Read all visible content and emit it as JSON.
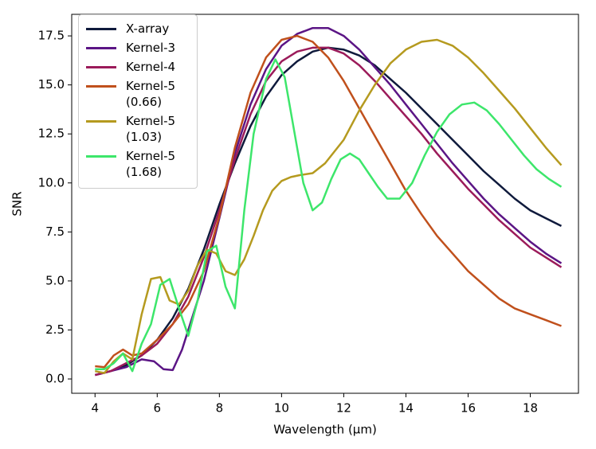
{
  "chart_data": {
    "type": "line",
    "xlabel": "Wavelength (μm)",
    "ylabel": "SNR",
    "xlim": [
      3.25,
      19.55
    ],
    "ylim": [
      -0.73,
      18.6
    ],
    "xticks": [
      4,
      6,
      8,
      10,
      12,
      14,
      16,
      18
    ],
    "yticks": [
      {
        "value": 0,
        "label": "0.0"
      },
      2.5,
      {
        "value": 5,
        "label": "5.0"
      },
      7.5,
      {
        "value": 10,
        "label": "10.0"
      },
      12.5,
      {
        "value": 15,
        "label": "15.0"
      },
      17.5
    ],
    "legend": "upper left",
    "series": [
      {
        "name": "X-array",
        "color": "#0f1a3c",
        "x": [
          4,
          4.5,
          5,
          5.5,
          6,
          6.5,
          7,
          7.5,
          8,
          8.5,
          9,
          9.5,
          10,
          10.5,
          11,
          11.5,
          12,
          12.5,
          13,
          13.5,
          14,
          14.5,
          15,
          15.5,
          16,
          16.5,
          17,
          17.5,
          18,
          18.5,
          19
        ],
        "values": [
          0.2,
          0.4,
          0.7,
          1.2,
          2.0,
          3.1,
          4.6,
          6.6,
          8.9,
          11.0,
          12.9,
          14.4,
          15.5,
          16.2,
          16.7,
          16.9,
          16.8,
          16.5,
          16.0,
          15.3,
          14.6,
          13.8,
          13.0,
          12.2,
          11.4,
          10.6,
          9.9,
          9.2,
          8.6,
          8.2,
          7.8
        ]
      },
      {
        "name": "Kernel-3",
        "color": "#5b1585",
        "x": [
          4,
          4.5,
          5,
          5.5,
          5.9,
          6.2,
          6.5,
          6.8,
          7,
          7.5,
          8,
          8.5,
          9,
          9.5,
          10,
          10.5,
          11,
          11.5,
          12,
          12.5,
          13,
          13.5,
          14,
          14.5,
          15,
          15.5,
          16,
          16.5,
          17,
          17.5,
          18,
          18.5,
          19
        ],
        "values": [
          0.2,
          0.4,
          0.6,
          1.0,
          0.9,
          0.5,
          0.45,
          1.5,
          2.5,
          5.0,
          8.2,
          11.5,
          14.0,
          15.8,
          17.0,
          17.6,
          17.9,
          17.9,
          17.5,
          16.8,
          15.9,
          15.0,
          14.0,
          13.0,
          12.0,
          11.0,
          10.1,
          9.2,
          8.4,
          7.7,
          7.0,
          6.4,
          5.9
        ]
      },
      {
        "name": "Kernel-4",
        "color": "#9b1b5a",
        "x": [
          4,
          4.5,
          5,
          5.5,
          6,
          6.5,
          7,
          7.5,
          8,
          8.5,
          9,
          9.5,
          10,
          10.5,
          11,
          11.5,
          12,
          12.5,
          13,
          13.5,
          14,
          14.5,
          15,
          15.5,
          16,
          16.5,
          17,
          17.5,
          18,
          18.5,
          19
        ],
        "values": [
          0.2,
          0.4,
          0.8,
          1.2,
          1.8,
          2.8,
          4.2,
          6.2,
          8.6,
          11.2,
          13.5,
          15.2,
          16.2,
          16.7,
          16.9,
          16.9,
          16.6,
          16.0,
          15.2,
          14.3,
          13.4,
          12.5,
          11.5,
          10.6,
          9.7,
          8.9,
          8.1,
          7.4,
          6.7,
          6.2,
          5.7
        ]
      },
      {
        "name": "Kernel-5\n(0.66)",
        "color": "#c0501c",
        "x": [
          4,
          4.3,
          4.6,
          4.9,
          5.2,
          5.5,
          6,
          6.5,
          7,
          7.5,
          8,
          8.5,
          9,
          9.5,
          10,
          10.5,
          11,
          11.5,
          12,
          12.5,
          13,
          13.5,
          14,
          14.5,
          15,
          15.5,
          16,
          16.5,
          17,
          17.5,
          18,
          18.5,
          19
        ],
        "values": [
          0.65,
          0.6,
          1.2,
          1.5,
          1.2,
          1.3,
          2.0,
          2.8,
          3.8,
          5.5,
          8.3,
          11.8,
          14.6,
          16.4,
          17.3,
          17.5,
          17.2,
          16.4,
          15.2,
          13.8,
          12.4,
          11.0,
          9.6,
          8.4,
          7.3,
          6.4,
          5.5,
          4.8,
          4.1,
          3.6,
          3.3,
          3.0,
          2.7
        ]
      },
      {
        "name": "Kernel-5\n(1.03)",
        "color": "#b59a1f",
        "x": [
          4,
          4.3,
          4.6,
          4.9,
          5.2,
          5.5,
          5.8,
          6.1,
          6.4,
          6.7,
          7,
          7.3,
          7.6,
          7.9,
          8.2,
          8.5,
          8.8,
          9.1,
          9.4,
          9.7,
          10,
          10.3,
          10.6,
          11,
          11.4,
          12,
          12.5,
          13,
          13.5,
          14,
          14.5,
          15,
          15.5,
          16,
          16.5,
          17,
          17.5,
          18,
          18.5,
          19
        ],
        "values": [
          0.4,
          0.3,
          0.9,
          1.3,
          1.0,
          3.3,
          5.1,
          5.2,
          4.0,
          3.8,
          4.5,
          5.8,
          6.6,
          6.4,
          5.5,
          5.3,
          6.1,
          7.3,
          8.6,
          9.6,
          10.1,
          10.3,
          10.4,
          10.5,
          11.0,
          12.2,
          13.7,
          15.0,
          16.1,
          16.8,
          17.2,
          17.3,
          17.0,
          16.4,
          15.6,
          14.7,
          13.8,
          12.8,
          11.8,
          10.9
        ]
      },
      {
        "name": "Kernel-5\n(1.68)",
        "color": "#3de66b",
        "x": [
          4,
          4.3,
          4.6,
          4.9,
          5.2,
          5.5,
          5.8,
          6.1,
          6.4,
          6.7,
          7,
          7.3,
          7.6,
          7.9,
          8.2,
          8.5,
          8.8,
          9.1,
          9.5,
          9.8,
          10.1,
          10.4,
          10.7,
          11,
          11.3,
          11.6,
          11.9,
          12.2,
          12.5,
          12.8,
          13.1,
          13.4,
          13.8,
          14.2,
          14.6,
          15,
          15.4,
          15.8,
          16.2,
          16.6,
          17,
          17.4,
          17.8,
          18.2,
          18.6,
          19
        ],
        "values": [
          0.5,
          0.5,
          0.8,
          1.3,
          0.4,
          1.8,
          2.8,
          4.8,
          5.1,
          3.6,
          2.2,
          4.0,
          6.5,
          6.8,
          4.7,
          3.6,
          8.6,
          12.5,
          15.3,
          16.3,
          15.4,
          12.7,
          10.0,
          8.6,
          9.0,
          10.2,
          11.2,
          11.5,
          11.2,
          10.5,
          9.8,
          9.2,
          9.2,
          10.0,
          11.4,
          12.6,
          13.5,
          14.0,
          14.1,
          13.7,
          13.0,
          12.2,
          11.4,
          10.7,
          10.2,
          9.8
        ]
      }
    ]
  }
}
